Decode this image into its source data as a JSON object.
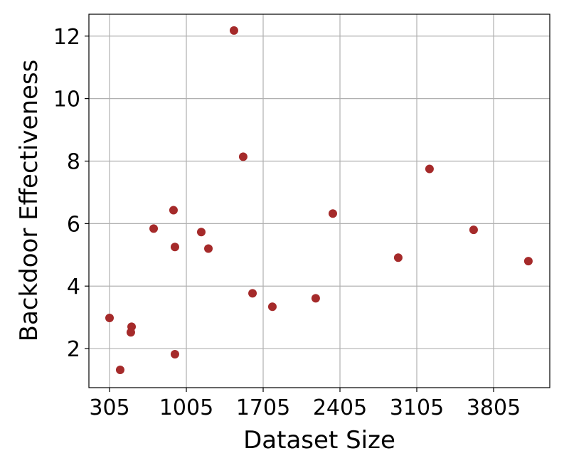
{
  "chart_data": {
    "type": "scatter",
    "xlabel": "Dataset Size",
    "ylabel": "Backdoor Effectiveness",
    "color": "#a52a2a",
    "grid": true,
    "xlim": [
      117,
      4317
    ],
    "ylim": [
      0.75,
      12.7
    ],
    "xticks": [
      305,
      1005,
      1705,
      2405,
      3105,
      3805
    ],
    "yticks": [
      2,
      4,
      6,
      8,
      10,
      12
    ],
    "x": [
      305,
      402,
      506,
      499,
      707,
      888,
      901,
      901,
      1141,
      1206,
      1439,
      1523,
      1608,
      1789,
      2184,
      2340,
      2936,
      3221,
      3623,
      4122
    ],
    "values": [
      2.98,
      1.32,
      2.7,
      2.52,
      5.84,
      6.43,
      5.25,
      1.82,
      5.73,
      5.2,
      12.18,
      8.14,
      3.77,
      3.34,
      3.61,
      6.32,
      4.91,
      7.75,
      5.8,
      4.8
    ]
  }
}
